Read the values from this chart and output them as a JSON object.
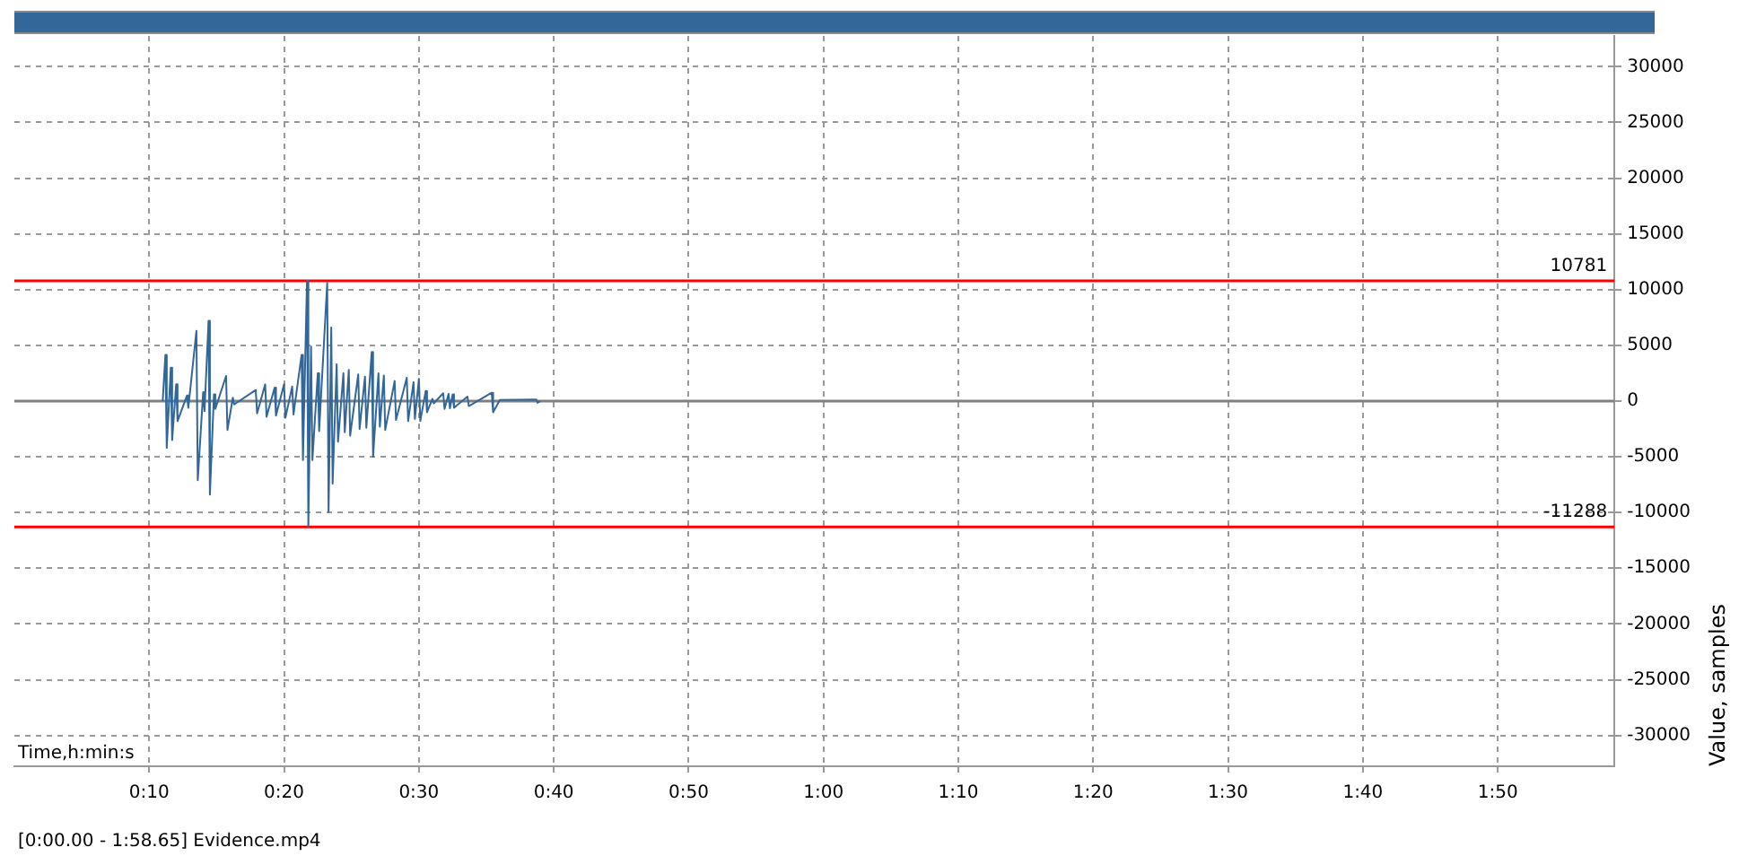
{
  "chart_data": {
    "type": "line",
    "xlabel": "Time,h:min:s",
    "ylabel": "Value, samples",
    "xlim": [
      0,
      118.65
    ],
    "ylim": [
      -32768,
      32767
    ],
    "xticks": [
      {
        "value": 10,
        "label": "0:10"
      },
      {
        "value": 20,
        "label": "0:20"
      },
      {
        "value": 30,
        "label": "0:30"
      },
      {
        "value": 40,
        "label": "0:40"
      },
      {
        "value": 50,
        "label": "0:50"
      },
      {
        "value": 60,
        "label": "1:00"
      },
      {
        "value": 70,
        "label": "1:10"
      },
      {
        "value": 80,
        "label": "1:20"
      },
      {
        "value": 90,
        "label": "1:30"
      },
      {
        "value": 100,
        "label": "1:40"
      },
      {
        "value": 110,
        "label": "1:50"
      }
    ],
    "yticks": [
      -30000,
      -25000,
      -20000,
      -15000,
      -10000,
      -5000,
      0,
      5000,
      10000,
      15000,
      20000,
      25000,
      30000
    ],
    "grid": true,
    "legend": false,
    "marker": "none",
    "line_style": "solid",
    "ref_lines": [
      {
        "axis": "y",
        "value": 0,
        "label": null,
        "color": "#808080"
      },
      {
        "axis": "y",
        "value": 10781,
        "label": "10781",
        "color": "#ff0000"
      },
      {
        "axis": "y",
        "value": -11288,
        "label": "-11288",
        "color": "#ff0000"
      }
    ],
    "annotations": [
      "[0:00.00 - 1:58.65] Evidence.mp4"
    ],
    "series": [
      {
        "color": "#336699",
        "x": [
          11.0,
          11.2,
          11.3,
          11.6,
          11.7,
          12.0,
          12.1,
          12.8,
          12.9,
          13.5,
          13.6,
          14.0,
          14.1,
          14.4,
          14.5,
          14.8,
          14.9,
          15.7,
          15.8,
          16.2,
          16.3,
          17.9,
          18.0,
          18.6,
          18.7,
          19.3,
          19.4,
          20.0,
          20.1,
          20.6,
          20.7,
          21.3,
          21.4,
          21.7,
          21.8,
          22.0,
          22.1,
          22.5,
          22.6,
          23.2,
          23.3,
          23.5,
          23.6,
          23.9,
          24.0,
          24.4,
          24.5,
          24.8,
          24.9,
          25.5,
          25.6,
          26.0,
          26.1,
          26.5,
          26.6,
          27.0,
          27.1,
          27.4,
          27.5,
          28.2,
          28.3,
          29.1,
          29.2,
          29.6,
          29.7,
          30.0,
          30.1,
          30.5,
          30.6,
          31.0,
          31.1,
          31.8,
          31.9,
          32.2,
          32.3,
          32.5,
          32.6,
          33.6,
          33.7,
          35.4,
          35.5,
          36.0,
          38.7,
          38.8,
          39.0
        ],
        "values": [
          0,
          4150,
          -4200,
          3000,
          -3500,
          1500,
          -1800,
          500,
          -600,
          6300,
          -7100,
          800,
          -900,
          7200,
          -8400,
          600,
          -700,
          2250,
          -2600,
          300,
          -300,
          1000,
          -1100,
          1500,
          -1400,
          1200,
          -1300,
          1500,
          -1500,
          1300,
          -1200,
          4150,
          -5300,
          10781,
          -11288,
          4900,
          -5300,
          2500,
          -2700,
          10600,
          -9950,
          6600,
          -7400,
          3300,
          -3650,
          2500,
          -2800,
          2800,
          -3100,
          2400,
          -2500,
          2200,
          -2400,
          4400,
          -5000,
          2500,
          -2300,
          2300,
          -2600,
          1800,
          -1700,
          2100,
          -1800,
          1700,
          -1600,
          2000,
          -1800,
          900,
          -1000,
          200,
          -200,
          700,
          -700,
          650,
          -650,
          600,
          -600,
          400,
          -450,
          750,
          -1000,
          100,
          150,
          -150,
          0
        ]
      }
    ]
  }
}
